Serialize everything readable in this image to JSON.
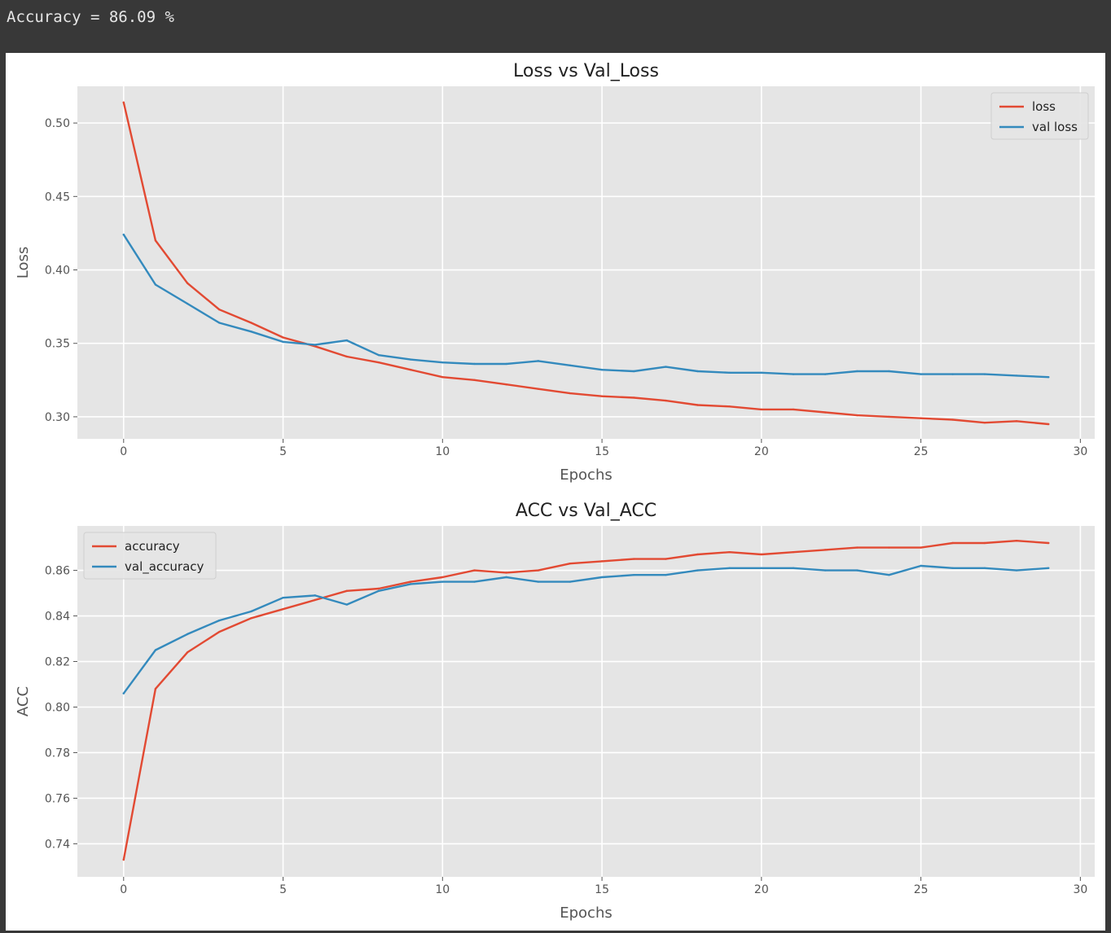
{
  "output": {
    "text": "Accuracy = 86.09 %"
  },
  "chart_data": [
    {
      "type": "line",
      "title": "Loss vs Val_Loss",
      "xlabel": "Epochs",
      "ylabel": "Loss",
      "xlim": [
        -1.45,
        30.45
      ],
      "ylim": [
        0.285,
        0.525
      ],
      "xticks": [
        0,
        5,
        10,
        15,
        20,
        25,
        30
      ],
      "yticks": [
        "0.30",
        "0.35",
        "0.40",
        "0.45",
        "0.50"
      ],
      "grid": true,
      "legend": "upper right",
      "x": [
        0,
        1,
        2,
        3,
        4,
        5,
        6,
        7,
        8,
        9,
        10,
        11,
        12,
        13,
        14,
        15,
        16,
        17,
        18,
        19,
        20,
        21,
        22,
        23,
        24,
        25,
        26,
        27,
        28,
        29
      ],
      "series": [
        {
          "name": "loss",
          "color": "#E24A33",
          "values": [
            0.514,
            0.42,
            0.391,
            0.373,
            0.364,
            0.354,
            0.348,
            0.341,
            0.337,
            0.332,
            0.327,
            0.325,
            0.322,
            0.319,
            0.316,
            0.314,
            0.313,
            0.311,
            0.308,
            0.307,
            0.305,
            0.305,
            0.303,
            0.301,
            0.3,
            0.299,
            0.298,
            0.296,
            0.297,
            0.295
          ]
        },
        {
          "name": "val loss",
          "color": "#348ABD",
          "values": [
            0.424,
            0.39,
            0.377,
            0.364,
            0.358,
            0.351,
            0.349,
            0.352,
            0.342,
            0.339,
            0.337,
            0.336,
            0.336,
            0.338,
            0.335,
            0.332,
            0.331,
            0.334,
            0.331,
            0.33,
            0.33,
            0.329,
            0.329,
            0.331,
            0.331,
            0.329,
            0.329,
            0.329,
            0.328,
            0.327
          ]
        }
      ]
    },
    {
      "type": "line",
      "title": "ACC vs Val_ACC",
      "xlabel": "Epochs",
      "ylabel": "ACC",
      "xlim": [
        -1.45,
        30.45
      ],
      "ylim": [
        0.7255,
        0.8795
      ],
      "xticks": [
        0,
        5,
        10,
        15,
        20,
        25,
        30
      ],
      "yticks": [
        "0.74",
        "0.76",
        "0.78",
        "0.80",
        "0.82",
        "0.84",
        "0.86"
      ],
      "grid": true,
      "legend": "upper left",
      "x": [
        0,
        1,
        2,
        3,
        4,
        5,
        6,
        7,
        8,
        9,
        10,
        11,
        12,
        13,
        14,
        15,
        16,
        17,
        18,
        19,
        20,
        21,
        22,
        23,
        24,
        25,
        26,
        27,
        28,
        29
      ],
      "series": [
        {
          "name": "accuracy",
          "color": "#E24A33",
          "values": [
            0.733,
            0.808,
            0.824,
            0.833,
            0.839,
            0.843,
            0.847,
            0.851,
            0.852,
            0.855,
            0.857,
            0.86,
            0.859,
            0.86,
            0.863,
            0.864,
            0.865,
            0.865,
            0.867,
            0.868,
            0.867,
            0.868,
            0.869,
            0.87,
            0.87,
            0.87,
            0.872,
            0.872,
            0.873,
            0.872
          ]
        },
        {
          "name": "val_accuracy",
          "color": "#348ABD",
          "values": [
            0.806,
            0.825,
            0.832,
            0.838,
            0.842,
            0.848,
            0.849,
            0.845,
            0.851,
            0.854,
            0.855,
            0.855,
            0.857,
            0.855,
            0.855,
            0.857,
            0.858,
            0.858,
            0.86,
            0.861,
            0.861,
            0.861,
            0.86,
            0.86,
            0.858,
            0.862,
            0.861,
            0.861,
            0.86,
            0.861
          ]
        }
      ]
    }
  ]
}
